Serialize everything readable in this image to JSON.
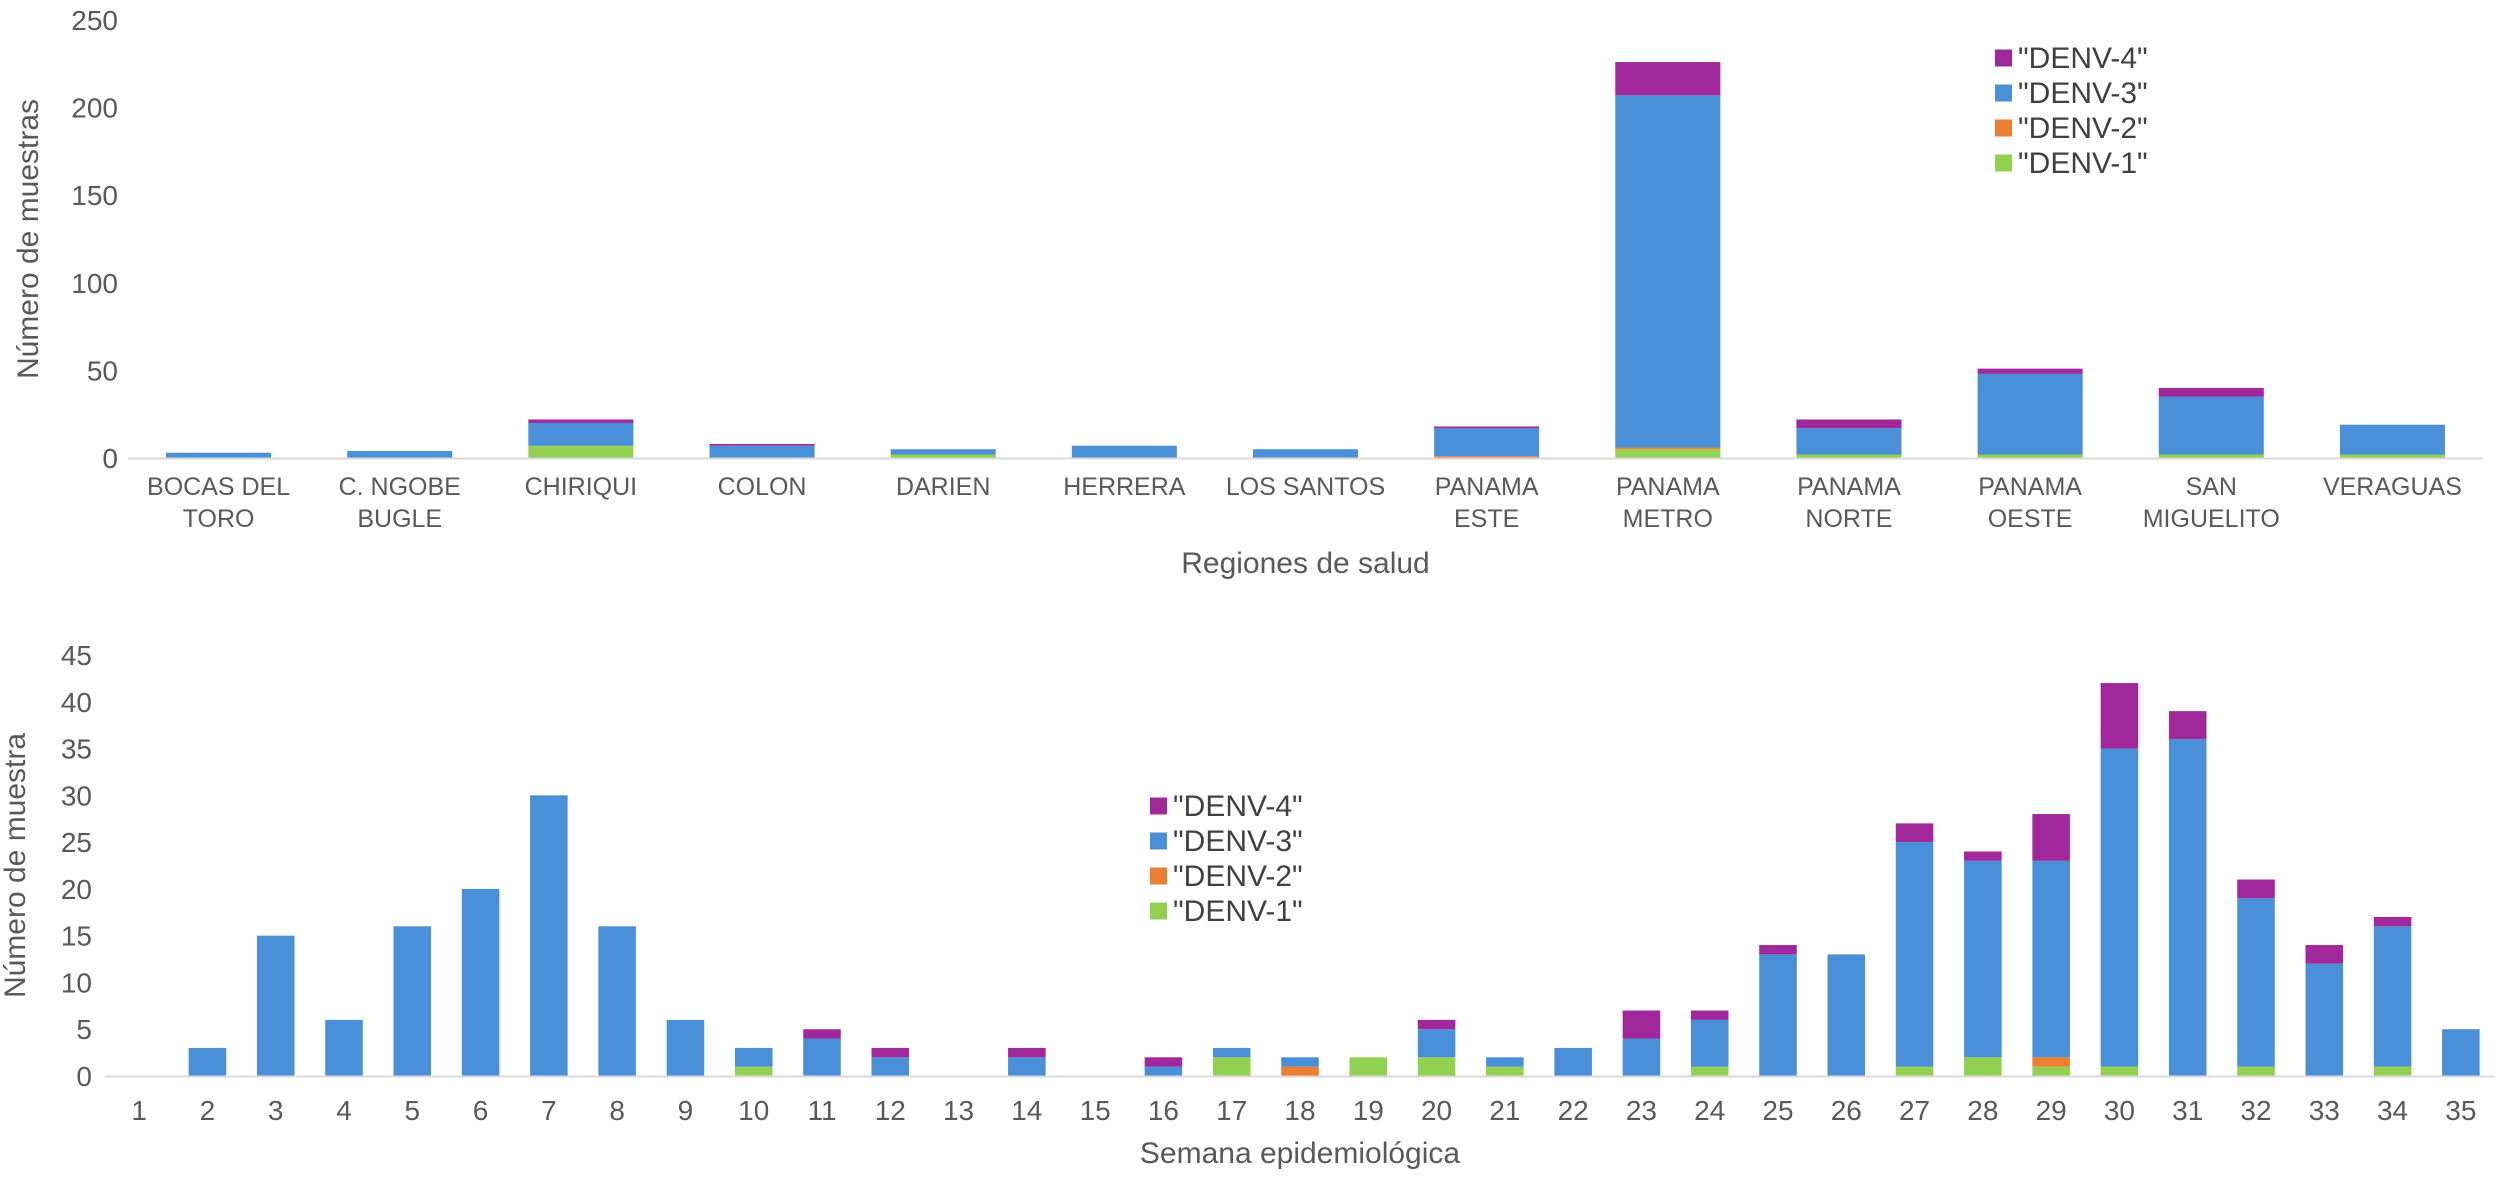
{
  "chart_data": [
    {
      "type": "bar",
      "stacked": true,
      "xlabel": "Regiones de salud",
      "ylabel": "Número de muestras",
      "ylim": [
        0,
        250
      ],
      "yticks": [
        0,
        50,
        100,
        150,
        200,
        250
      ],
      "grid": false,
      "legend_position": "top-right",
      "categories": [
        [
          "BOCAS DEL",
          "TORO"
        ],
        [
          "C. NGOBE",
          "BUGLE"
        ],
        [
          "CHIRIQUI"
        ],
        [
          "COLON"
        ],
        [
          "DARIEN"
        ],
        [
          "HERRERA"
        ],
        [
          "LOS SANTOS"
        ],
        [
          "PANAMA",
          "ESTE"
        ],
        [
          "PANAMA",
          "METRO"
        ],
        [
          "PANAMA",
          "NORTE"
        ],
        [
          "PANAMA",
          "OESTE"
        ],
        [
          "SAN",
          "MIGUELITO"
        ],
        [
          "VERAGUAS"
        ]
      ],
      "series": [
        {
          "name": "\"DENV-1\"",
          "color": "#92D050",
          "values": [
            0,
            0,
            7,
            0,
            2,
            0,
            0,
            0,
            5,
            2,
            2,
            2,
            2
          ]
        },
        {
          "name": "\"DENV-2\"",
          "color": "#ED7D31",
          "values": [
            0,
            0,
            0,
            0,
            0,
            0,
            0,
            1,
            1,
            0,
            0,
            0,
            0
          ]
        },
        {
          "name": "\"DENV-3\"",
          "color": "#4A90D9",
          "values": [
            3,
            4,
            13,
            7,
            3,
            7,
            5,
            16,
            201,
            15,
            46,
            33,
            17
          ]
        },
        {
          "name": "\"DENV-4\"",
          "color": "#A0289B",
          "values": [
            0,
            0,
            2,
            1,
            0,
            0,
            0,
            1,
            19,
            5,
            3,
            5,
            0
          ]
        }
      ],
      "legend_order": [
        "\"DENV-4\"",
        "\"DENV-3\"",
        "\"DENV-2\"",
        "\"DENV-1\""
      ]
    },
    {
      "type": "bar",
      "stacked": true,
      "xlabel": "Semana epidemiológica",
      "ylabel": "Número de muestra",
      "ylim": [
        0,
        45
      ],
      "yticks": [
        0,
        5,
        10,
        15,
        20,
        25,
        30,
        35,
        40,
        45
      ],
      "grid": false,
      "legend_position": "center",
      "categories": [
        "1",
        "2",
        "3",
        "4",
        "5",
        "6",
        "7",
        "8",
        "9",
        "10",
        "11",
        "12",
        "13",
        "14",
        "15",
        "16",
        "17",
        "18",
        "19",
        "20",
        "21",
        "22",
        "23",
        "24",
        "25",
        "26",
        "27",
        "28",
        "29",
        "30",
        "31",
        "32",
        "33",
        "34",
        "35"
      ],
      "series": [
        {
          "name": "\"DENV-1\"",
          "color": "#92D050",
          "values": [
            0,
            0,
            0,
            0,
            0,
            0,
            0,
            0,
            0,
            1,
            0,
            0,
            0,
            0,
            0,
            0,
            2,
            0,
            2,
            2,
            1,
            0,
            0,
            1,
            0,
            0,
            1,
            2,
            1,
            1,
            0,
            1,
            0,
            1,
            0
          ]
        },
        {
          "name": "\"DENV-2\"",
          "color": "#ED7D31",
          "values": [
            0,
            0,
            0,
            0,
            0,
            0,
            0,
            0,
            0,
            0,
            0,
            0,
            0,
            0,
            0,
            0,
            0,
            1,
            0,
            0,
            0,
            0,
            0,
            0,
            0,
            0,
            0,
            0,
            1,
            0,
            0,
            0,
            0,
            0,
            0
          ]
        },
        {
          "name": "\"DENV-3\"",
          "color": "#4A90D9",
          "values": [
            0,
            3,
            15,
            6,
            16,
            20,
            30,
            16,
            6,
            2,
            4,
            2,
            0,
            2,
            0,
            1,
            1,
            1,
            0,
            3,
            1,
            3,
            4,
            5,
            13,
            13,
            24,
            21,
            21,
            34,
            36,
            18,
            12,
            15,
            5
          ]
        },
        {
          "name": "\"DENV-4\"",
          "color": "#A0289B",
          "values": [
            0,
            0,
            0,
            0,
            0,
            0,
            0,
            0,
            0,
            0,
            1,
            1,
            0,
            1,
            0,
            1,
            0,
            0,
            0,
            1,
            0,
            0,
            3,
            1,
            1,
            0,
            2,
            1,
            5,
            7,
            3,
            2,
            2,
            1,
            0
          ]
        }
      ],
      "legend_order": [
        "\"DENV-4\"",
        "\"DENV-3\"",
        "\"DENV-2\"",
        "\"DENV-1\""
      ]
    }
  ]
}
